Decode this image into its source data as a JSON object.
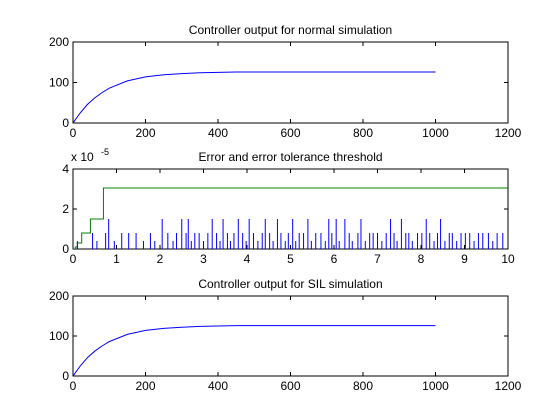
{
  "chart_data": [
    {
      "type": "line",
      "title": "Controller output for normal simulation",
      "xlabel": "",
      "ylabel": "",
      "xlim": [
        0,
        1200
      ],
      "ylim": [
        0,
        200
      ],
      "xticks": [
        0,
        200,
        400,
        600,
        800,
        1000,
        1200
      ],
      "yticks": [
        0,
        100,
        200
      ],
      "grid": false,
      "series": [
        {
          "color": "#0000ff",
          "step": false,
          "x": [
            0,
            20,
            40,
            60,
            80,
            100,
            150,
            200,
            250,
            300,
            350,
            400,
            450,
            500,
            600,
            700,
            800,
            900,
            1000
          ],
          "y": [
            0,
            25,
            46,
            62,
            75,
            86,
            104,
            114,
            119,
            122,
            124,
            125,
            126,
            126,
            126,
            126,
            126,
            126,
            126
          ]
        }
      ]
    },
    {
      "type": "line",
      "title": "Error and error tolerance threshold",
      "xlabel": "",
      "ylabel": "",
      "xlim": [
        0,
        10
      ],
      "ylim": [
        0,
        4
      ],
      "xticks": [
        0,
        1,
        2,
        3,
        4,
        5,
        6,
        7,
        8,
        9,
        10
      ],
      "yticks": [
        0,
        2,
        4
      ],
      "y_exponent_label": "x 10",
      "y_exponent_value": "-5",
      "grid": false,
      "series": [
        {
          "color": "#008000",
          "step": true,
          "x": [
            0,
            0.05,
            0.1,
            0.2,
            0.3,
            0.4,
            0.5,
            0.7,
            10
          ],
          "y": [
            0,
            0.1,
            0.3,
            0.8,
            0.8,
            1.5,
            1.5,
            3.05,
            3.05
          ]
        },
        {
          "color": "#0000ff",
          "kind": "spikes",
          "x": [
            0.1,
            0.45,
            0.55,
            0.75,
            0.82,
            0.95,
            1.12,
            1.28,
            1.45,
            1.62,
            1.78,
            1.88,
            2.05,
            2.18,
            2.3,
            2.38,
            2.5,
            2.6,
            2.65,
            2.72,
            2.8,
            2.9,
            3.0,
            3.1,
            3.2,
            3.3,
            3.38,
            3.45,
            3.55,
            3.62,
            3.7,
            3.8,
            3.9,
            3.98,
            4.05,
            4.15,
            4.25,
            4.35,
            4.42,
            4.52,
            4.6,
            4.7,
            4.78,
            4.88,
            4.95,
            5.05,
            5.12,
            5.2,
            5.3,
            5.4,
            5.48,
            5.58,
            5.7,
            5.8,
            5.88,
            5.95,
            6.05,
            6.12,
            6.25,
            6.35,
            6.42,
            6.55,
            6.62,
            6.72,
            6.82,
            6.9,
            7.0,
            7.1,
            7.2,
            7.3,
            7.38,
            7.45,
            7.55,
            7.65,
            7.72,
            7.8,
            7.92,
            8.02,
            8.12,
            8.2,
            8.3,
            8.38,
            8.45,
            8.55,
            8.65,
            8.72,
            8.82,
            8.92,
            9.02,
            9.12,
            9.22,
            9.32,
            9.42,
            9.55,
            9.65,
            9.75,
            9.88
          ],
          "y": [
            0.4,
            0.8,
            0.4,
            0.8,
            1.5,
            0.4,
            0.8,
            0.8,
            0.8,
            0.4,
            0.8,
            0.4,
            1.5,
            0.8,
            0.4,
            0.8,
            1.5,
            0.8,
            1.5,
            0.4,
            0.8,
            0.8,
            0.4,
            0.8,
            1.5,
            0.8,
            0.4,
            1.5,
            0.8,
            0.4,
            0.8,
            1.5,
            0.8,
            0.4,
            1.5,
            0.8,
            0.4,
            0.8,
            1.5,
            0.8,
            0.4,
            1.5,
            0.8,
            0.4,
            0.8,
            1.5,
            0.4,
            0.8,
            0.8,
            1.5,
            0.4,
            0.8,
            0.8,
            0.4,
            1.5,
            0.8,
            1.5,
            0.4,
            1.5,
            0.8,
            0.4,
            0.8,
            1.5,
            0.4,
            0.8,
            0.8,
            0.8,
            0.4,
            0.8,
            1.5,
            0.8,
            0.4,
            1.5,
            0.8,
            0.8,
            0.4,
            0.8,
            0.8,
            1.5,
            0.8,
            0.4,
            0.8,
            1.5,
            0.4,
            0.8,
            0.8,
            0.4,
            0.8,
            0.8,
            0.8,
            0.4,
            0.8,
            0.8,
            0.8,
            0.4,
            0.8,
            0.8
          ]
        }
      ]
    },
    {
      "type": "line",
      "title": "Controller output for SIL simulation",
      "xlabel": "",
      "ylabel": "",
      "xlim": [
        0,
        1200
      ],
      "ylim": [
        0,
        200
      ],
      "xticks": [
        0,
        200,
        400,
        600,
        800,
        1000,
        1200
      ],
      "yticks": [
        0,
        100,
        200
      ],
      "grid": false,
      "series": [
        {
          "color": "#0000ff",
          "step": false,
          "x": [
            0,
            20,
            40,
            60,
            80,
            100,
            150,
            200,
            250,
            300,
            350,
            400,
            450,
            500,
            600,
            700,
            800,
            900,
            1000
          ],
          "y": [
            0,
            25,
            46,
            62,
            75,
            86,
            104,
            114,
            119,
            122,
            124,
            125,
            126,
            126,
            126,
            126,
            126,
            126,
            126
          ]
        }
      ]
    }
  ]
}
